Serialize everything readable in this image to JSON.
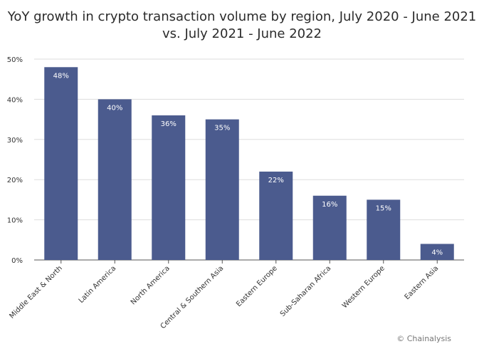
{
  "title_line1": "YoY growth in crypto transaction volume by region, July 2020 - June 2021",
  "title_line2": "vs. July 2021 - June 2022",
  "credit": "© Chainalysis",
  "colors": {
    "bar": "#4b5b8e",
    "grid": "#dddddd",
    "axis": "#555555"
  },
  "chart_data": {
    "type": "bar",
    "title": "YoY growth in crypto transaction volume by region, July 2020 - June 2021 vs. July 2021 - June 2022",
    "categories": [
      "Middle East & North",
      "Latin America",
      "North America",
      "Central & Southern Asia",
      "Eastern Europe",
      "Sub-Saharan Africa",
      "Western Europe",
      "Eastern Asia"
    ],
    "values": [
      48,
      40,
      36,
      35,
      22,
      16,
      15,
      4
    ],
    "value_labels": [
      "48%",
      "40%",
      "36%",
      "35%",
      "22%",
      "16%",
      "15%",
      "4%"
    ],
    "yticks": [
      "0%",
      "10%",
      "20%",
      "30%",
      "40%",
      "50%"
    ],
    "ytick_values": [
      0,
      10,
      20,
      30,
      40,
      50
    ],
    "ylim": [
      0,
      50
    ],
    "grid": true,
    "xlabel": "",
    "ylabel": ""
  }
}
